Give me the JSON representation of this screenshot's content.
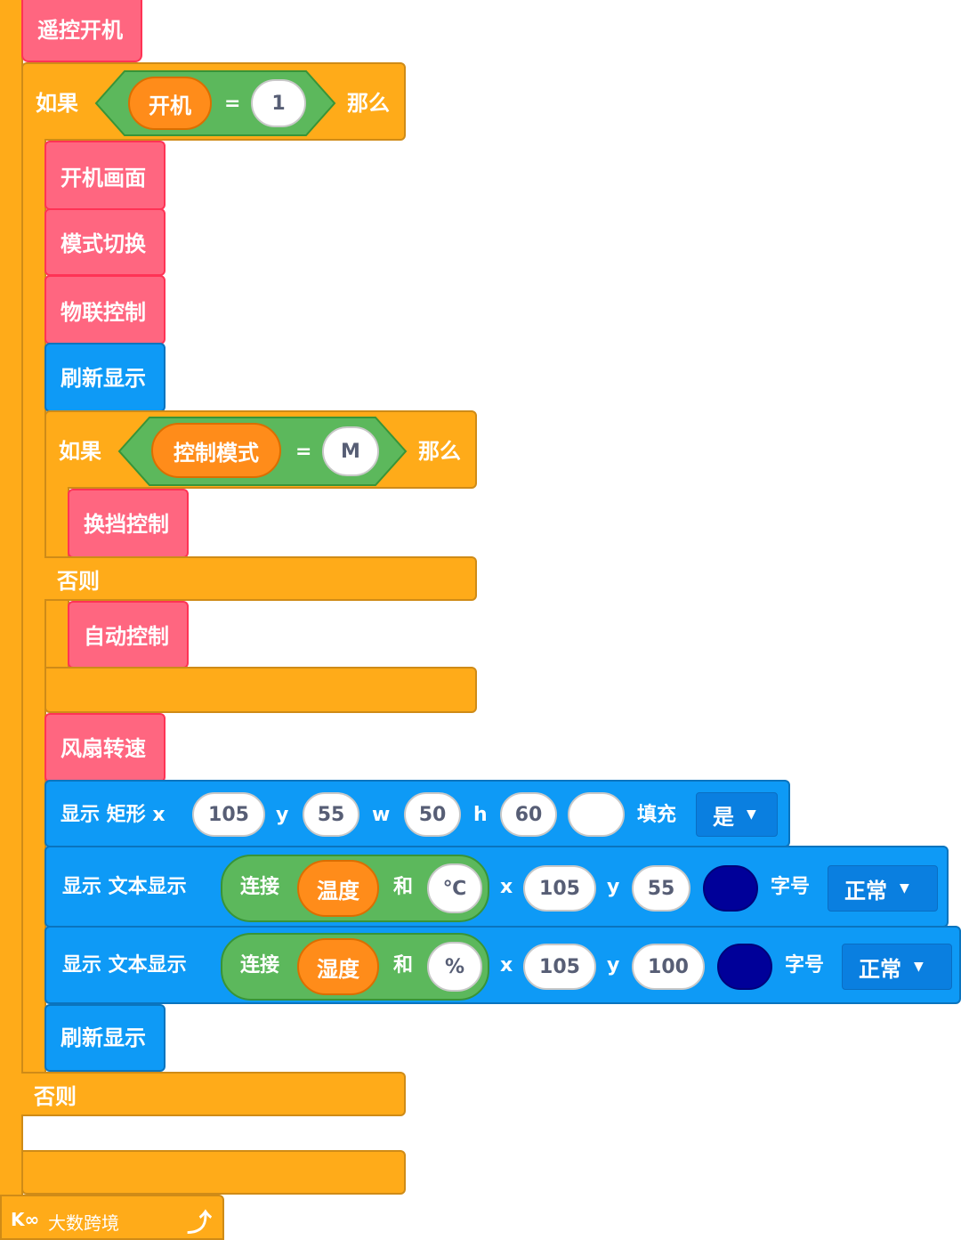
{
  "hat_label": "遥控开机",
  "if1": {
    "if_label": "如果",
    "var": "开机",
    "op": "=",
    "val": "1",
    "then_label": "那么",
    "else_label": "否则"
  },
  "calls": {
    "boot_screen": "开机画面",
    "mode_switch": "模式切换",
    "iot_control": "物联控制",
    "gear_control": "换挡控制",
    "auto_control": "自动控制",
    "fan_speed": "风扇转速"
  },
  "refresh_label": "刷新显示",
  "if2": {
    "if_label": "如果",
    "var": "控制模式",
    "op": "=",
    "val": "M",
    "then_label": "那么",
    "else_label": "否则"
  },
  "rect_block": {
    "prefix": "显示 矩形 x",
    "x": "105",
    "y_label": "y",
    "y": "55",
    "w_label": "w",
    "w": "50",
    "h_label": "h",
    "h": "60",
    "color": "#ffffff",
    "fill_label": "填充",
    "fill_value": "是"
  },
  "text_block_1": {
    "prefix": "显示 文本显示",
    "join_label": "连接",
    "var": "温度",
    "and_label": "和",
    "suffix": "℃",
    "x_label": "x",
    "x": "105",
    "y_label": "y",
    "y": "55",
    "color": "#000099",
    "size_label": "字号",
    "size_value": "正常"
  },
  "text_block_2": {
    "prefix": "显示 文本显示",
    "join_label": "连接",
    "var": "湿度",
    "and_label": "和",
    "suffix": "%",
    "x_label": "x",
    "x": "105",
    "y_label": "y",
    "y": "100",
    "color": "#000099",
    "size_label": "字号",
    "size_value": "正常"
  },
  "watermark": "大数跨境",
  "colors": {
    "orange": "#FFAB19",
    "pink": "#FF6680",
    "blue": "#0E9AF6",
    "green": "#5CB85C",
    "var_orange": "#FF8C1A"
  },
  "icons": {
    "undo": "undo-arrow-icon",
    "dropdown": "caret-down-icon"
  }
}
